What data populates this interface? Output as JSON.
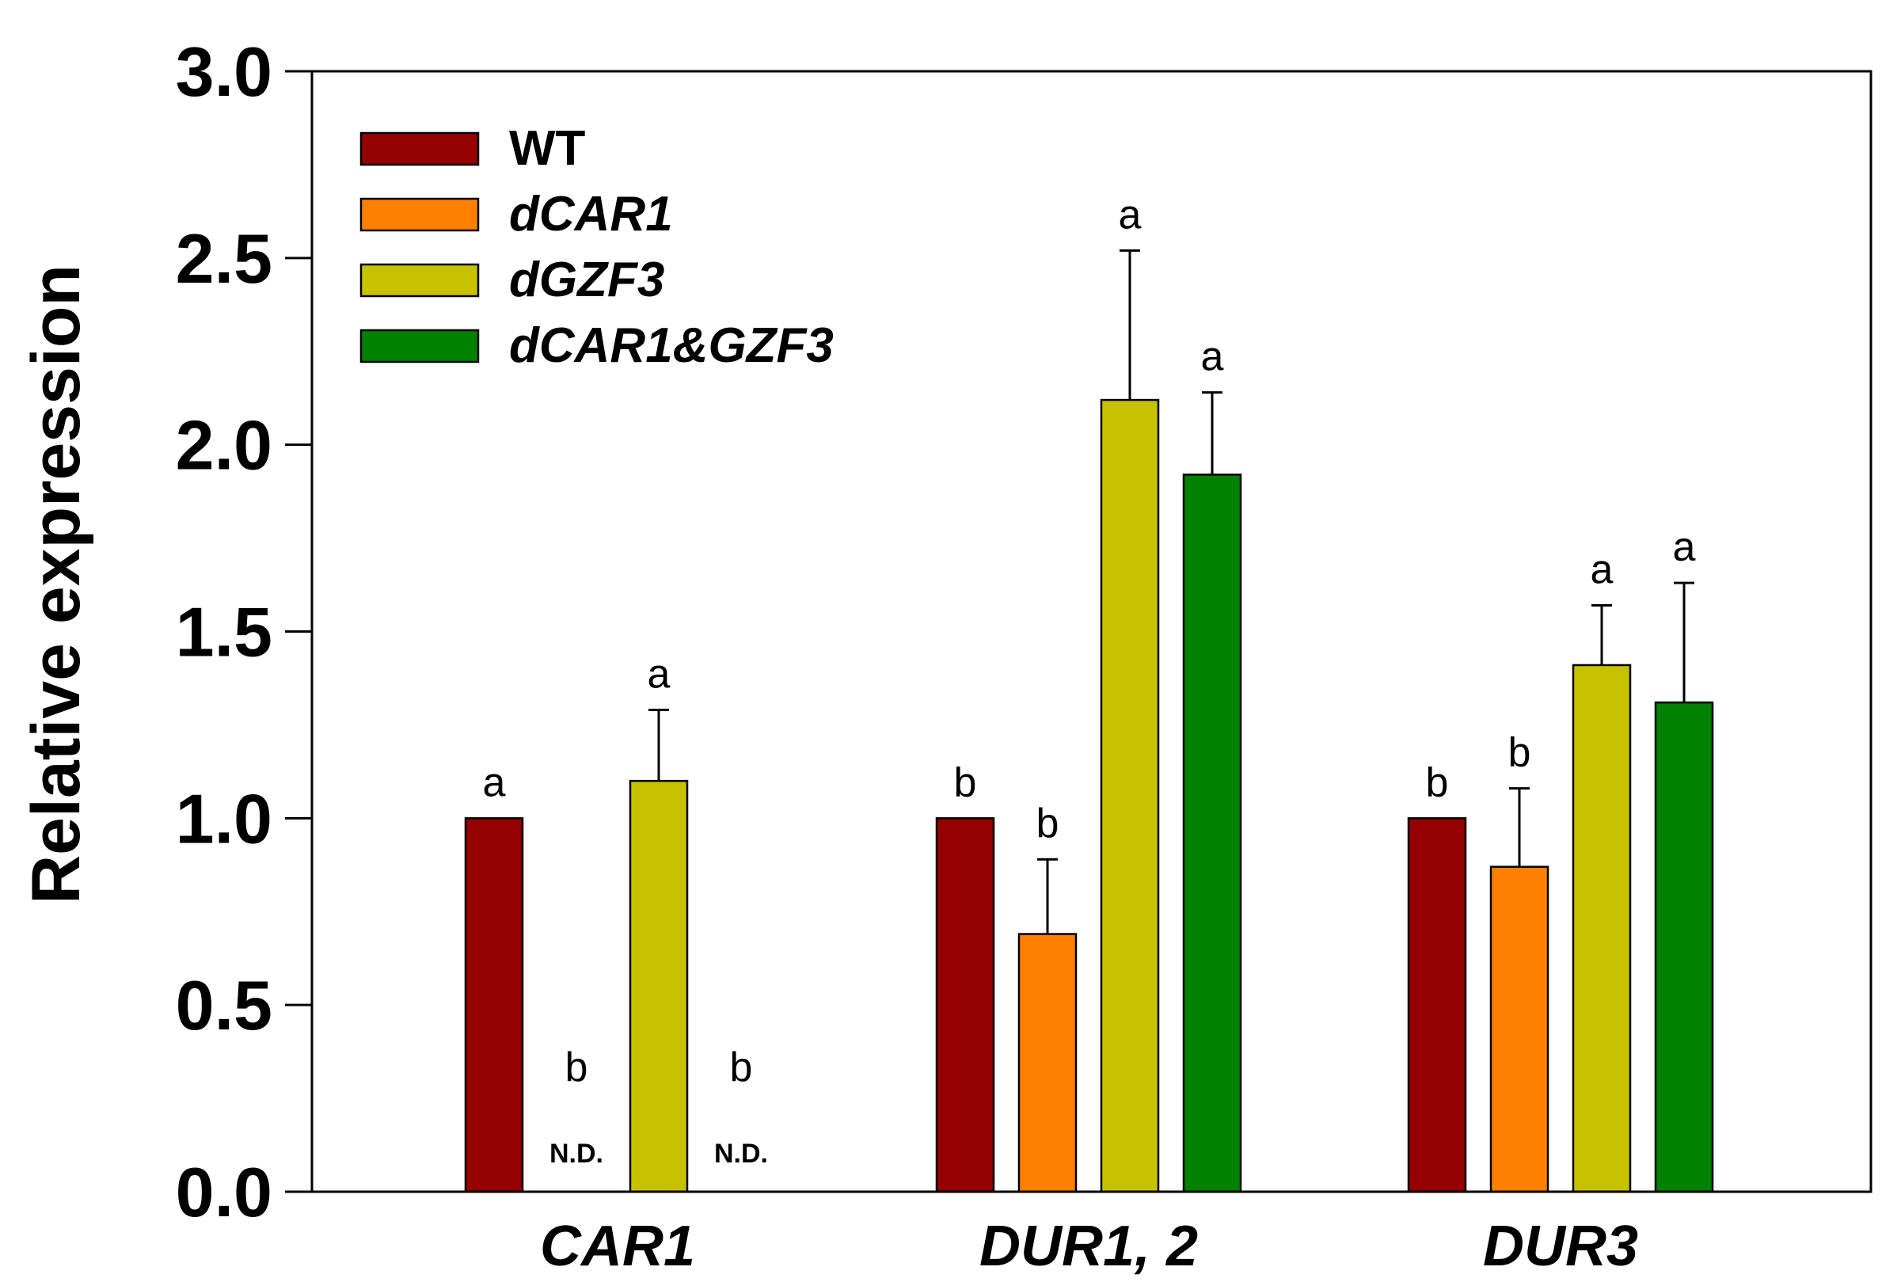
{
  "chart_data": {
    "type": "bar",
    "title": "",
    "xlabel": "",
    "ylabel": "Relative expression",
    "ylim": [
      0,
      3.0
    ],
    "yticks": [
      "0.0",
      "0.5",
      "1.0",
      "1.5",
      "2.0",
      "2.5",
      "3.0"
    ],
    "categories": [
      "CAR1",
      "DUR1, 2",
      "DUR3"
    ],
    "legend_position": "top-left",
    "series": [
      {
        "name": "WT",
        "italic": false,
        "color": "#950000",
        "values": [
          1.0,
          1.0,
          1.0
        ],
        "errors": [
          0,
          0,
          0
        ],
        "significance": [
          "a",
          "b",
          "b"
        ],
        "notes": [
          "",
          "",
          ""
        ]
      },
      {
        "name": "dCAR1",
        "italic": true,
        "color": "#FF8000",
        "values": [
          0,
          0.69,
          0.87
        ],
        "errors": [
          0,
          0.2,
          0.21
        ],
        "significance": [
          "b",
          "b",
          "b"
        ],
        "notes": [
          "N.D.",
          "",
          ""
        ]
      },
      {
        "name": "dGZF3",
        "italic": true,
        "color": "#C6C200",
        "values": [
          1.1,
          2.12,
          1.41
        ],
        "errors": [
          0.19,
          0.4,
          0.16
        ],
        "significance": [
          "a",
          "a",
          "a"
        ],
        "notes": [
          "",
          "",
          ""
        ]
      },
      {
        "name": "dCAR1&GZF3",
        "italic": true,
        "color": "#008200",
        "values": [
          0,
          1.92,
          1.31
        ],
        "errors": [
          0,
          0.22,
          0.32
        ],
        "significance": [
          "b",
          "a",
          "a"
        ],
        "notes": [
          "N.D.",
          "",
          ""
        ]
      }
    ]
  }
}
